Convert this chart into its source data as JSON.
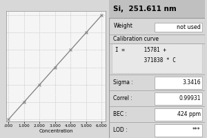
{
  "title": "Si,  251.611 nm",
  "weight_label": "Weight",
  "weight_value": "not used",
  "calibration_label": "Calibration curve",
  "equation_line1": "I =      15781 +",
  "equation_line2": "         371838 * C",
  "sigma_label": "Sigma :",
  "sigma_value": "3.3416",
  "correl_label": "Correl :",
  "correl_value": "0.99931",
  "bec_label": "BEC :",
  "bec_value": "424 ppm",
  "lod_label": "LOD :",
  "lod_value": "***",
  "x_label": "Concentration",
  "x_ticks": [
    ".000",
    "1.000",
    "2.000",
    "3.000",
    "4.000",
    "5.000",
    "6.000"
  ],
  "x_values": [
    0,
    1,
    2,
    3,
    4,
    5,
    6
  ],
  "bg_color": "#d8d8d8",
  "chart_bg": "#f5f5f5",
  "panel_bg": "#f0f0f0",
  "title_bg": "#c0c0c0",
  "box_bg": "#e8e8e8",
  "grid_color": "#aaaaaa",
  "line_color": "#888888",
  "border_color": "#888888"
}
